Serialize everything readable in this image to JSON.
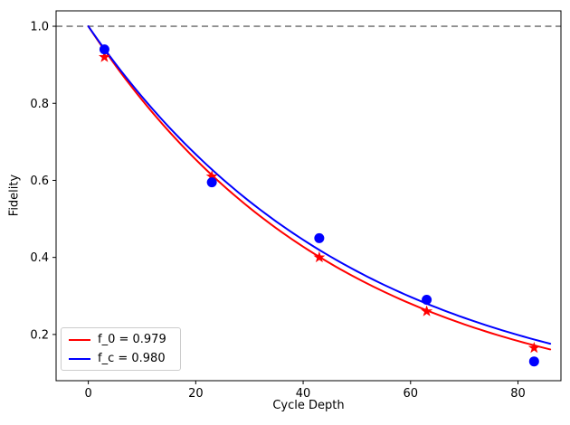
{
  "chart_data": {
    "type": "line",
    "title": "",
    "xlabel": "Cycle Depth",
    "ylabel": "Fidelity",
    "xlim": [
      -6,
      88
    ],
    "ylim": [
      0.08,
      1.04
    ],
    "xticks": [
      0,
      20,
      40,
      60,
      80
    ],
    "yticks": [
      0.2,
      0.4,
      0.6,
      0.8,
      1.0
    ],
    "grid": false,
    "reference_line": {
      "y": 1.0,
      "style": "dashed",
      "color": "#7f7f7f"
    },
    "series": [
      {
        "name": "f_0 fit curve",
        "kind": "fit-curve",
        "color": "#ff0000",
        "model": "y = rate^x",
        "rate": 0.979,
        "x_range": [
          0,
          86
        ],
        "linewidth": 2
      },
      {
        "name": "f_c fit curve",
        "kind": "fit-curve",
        "color": "#0000ff",
        "model": "y = rate^x",
        "rate": 0.98,
        "x_range": [
          0,
          86
        ],
        "linewidth": 2
      },
      {
        "name": "f_0 data points",
        "kind": "scatter",
        "marker": "star",
        "color": "#ff0000",
        "x": [
          3,
          23,
          43,
          63,
          83
        ],
        "y": [
          0.92,
          0.61,
          0.4,
          0.26,
          0.165
        ]
      },
      {
        "name": "f_c data points",
        "kind": "scatter",
        "marker": "circle",
        "color": "#0000ff",
        "x": [
          3,
          23,
          43,
          63,
          83
        ],
        "y": [
          0.94,
          0.595,
          0.45,
          0.29,
          0.13
        ]
      }
    ],
    "legend": {
      "position": "lower left",
      "entries": [
        {
          "label": "f_0 = 0.979",
          "color": "#ff0000"
        },
        {
          "label": "f_c = 0.980",
          "color": "#0000ff"
        }
      ]
    }
  }
}
